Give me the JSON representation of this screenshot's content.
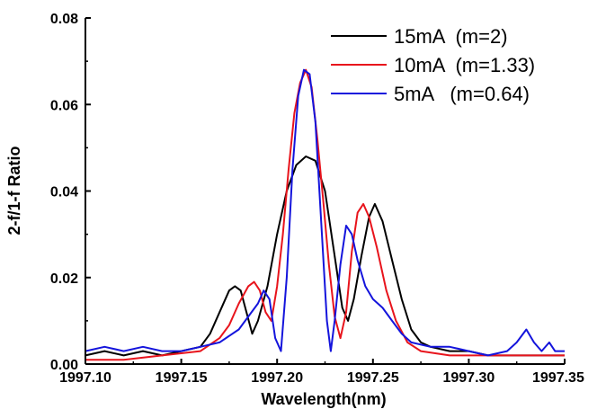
{
  "chart_data": {
    "type": "line",
    "xlabel": "Wavelength(nm)",
    "ylabel": "2-f/1-f Ratio",
    "xlim": [
      1997.1,
      1997.35
    ],
    "ylim": [
      0.0,
      0.08
    ],
    "xticks": [
      {
        "value": 1997.1,
        "label": "1997.10"
      },
      {
        "value": 1997.15,
        "label": "1997.15"
      },
      {
        "value": 1997.2,
        "label": "1997.20"
      },
      {
        "value": 1997.25,
        "label": "1997.25"
      },
      {
        "value": 1997.3,
        "label": "1997.30"
      },
      {
        "value": 1997.35,
        "label": "1997.35"
      }
    ],
    "yticks": [
      {
        "value": 0.0,
        "label": "0.00"
      },
      {
        "value": 0.02,
        "label": "0.02"
      },
      {
        "value": 0.04,
        "label": "0.04"
      },
      {
        "value": 0.06,
        "label": "0.06"
      },
      {
        "value": 0.08,
        "label": "0.08"
      }
    ],
    "grid": false,
    "legend_position": "top-right",
    "series": [
      {
        "name": "15mA  (m=2)",
        "color": "#000000",
        "points": [
          [
            1997.1,
            0.002
          ],
          [
            1997.11,
            0.003
          ],
          [
            1997.12,
            0.002
          ],
          [
            1997.13,
            0.003
          ],
          [
            1997.14,
            0.002
          ],
          [
            1997.15,
            0.003
          ],
          [
            1997.16,
            0.004
          ],
          [
            1997.165,
            0.007
          ],
          [
            1997.17,
            0.012
          ],
          [
            1997.175,
            0.017
          ],
          [
            1997.178,
            0.018
          ],
          [
            1997.181,
            0.017
          ],
          [
            1997.184,
            0.012
          ],
          [
            1997.187,
            0.007
          ],
          [
            1997.19,
            0.01
          ],
          [
            1997.195,
            0.018
          ],
          [
            1997.2,
            0.03
          ],
          [
            1997.205,
            0.04
          ],
          [
            1997.21,
            0.046
          ],
          [
            1997.215,
            0.048
          ],
          [
            1997.22,
            0.047
          ],
          [
            1997.225,
            0.04
          ],
          [
            1997.23,
            0.025
          ],
          [
            1997.234,
            0.013
          ],
          [
            1997.237,
            0.01
          ],
          [
            1997.24,
            0.015
          ],
          [
            1997.244,
            0.025
          ],
          [
            1997.248,
            0.034
          ],
          [
            1997.251,
            0.037
          ],
          [
            1997.255,
            0.033
          ],
          [
            1997.26,
            0.024
          ],
          [
            1997.265,
            0.015
          ],
          [
            1997.27,
            0.008
          ],
          [
            1997.275,
            0.005
          ],
          [
            1997.28,
            0.004
          ],
          [
            1997.29,
            0.003
          ],
          [
            1997.3,
            0.003
          ],
          [
            1997.31,
            0.002
          ],
          [
            1997.32,
            0.002
          ],
          [
            1997.33,
            0.002
          ],
          [
            1997.34,
            0.002
          ],
          [
            1997.35,
            0.002
          ]
        ]
      },
      {
        "name": "10mA  (m=1.33)",
        "color": "#e8141c",
        "points": [
          [
            1997.1,
            0.001
          ],
          [
            1997.12,
            0.001
          ],
          [
            1997.14,
            0.002
          ],
          [
            1997.16,
            0.003
          ],
          [
            1997.17,
            0.006
          ],
          [
            1997.175,
            0.009
          ],
          [
            1997.18,
            0.014
          ],
          [
            1997.185,
            0.018
          ],
          [
            1997.188,
            0.019
          ],
          [
            1997.191,
            0.017
          ],
          [
            1997.194,
            0.012
          ],
          [
            1997.197,
            0.01
          ],
          [
            1997.2,
            0.018
          ],
          [
            1997.203,
            0.03
          ],
          [
            1997.206,
            0.045
          ],
          [
            1997.209,
            0.058
          ],
          [
            1997.212,
            0.065
          ],
          [
            1997.215,
            0.068
          ],
          [
            1997.218,
            0.064
          ],
          [
            1997.221,
            0.052
          ],
          [
            1997.224,
            0.038
          ],
          [
            1997.227,
            0.023
          ],
          [
            1997.23,
            0.011
          ],
          [
            1997.233,
            0.006
          ],
          [
            1997.236,
            0.012
          ],
          [
            1997.239,
            0.026
          ],
          [
            1997.242,
            0.035
          ],
          [
            1997.245,
            0.037
          ],
          [
            1997.248,
            0.034
          ],
          [
            1997.252,
            0.027
          ],
          [
            1997.257,
            0.017
          ],
          [
            1997.262,
            0.01
          ],
          [
            1997.268,
            0.005
          ],
          [
            1997.275,
            0.003
          ],
          [
            1997.29,
            0.002
          ],
          [
            1997.31,
            0.002
          ],
          [
            1997.33,
            0.002
          ],
          [
            1997.35,
            0.002
          ]
        ]
      },
      {
        "name": "5mA   (m=0.64)",
        "color": "#1414dc",
        "points": [
          [
            1997.1,
            0.003
          ],
          [
            1997.11,
            0.004
          ],
          [
            1997.12,
            0.003
          ],
          [
            1997.13,
            0.004
          ],
          [
            1997.14,
            0.003
          ],
          [
            1997.15,
            0.003
          ],
          [
            1997.16,
            0.004
          ],
          [
            1997.17,
            0.005
          ],
          [
            1997.18,
            0.008
          ],
          [
            1997.185,
            0.011
          ],
          [
            1997.19,
            0.014
          ],
          [
            1997.193,
            0.017
          ],
          [
            1997.196,
            0.015
          ],
          [
            1997.199,
            0.006
          ],
          [
            1997.202,
            0.003
          ],
          [
            1997.205,
            0.02
          ],
          [
            1997.208,
            0.045
          ],
          [
            1997.211,
            0.062
          ],
          [
            1997.214,
            0.068
          ],
          [
            1997.217,
            0.067
          ],
          [
            1997.22,
            0.056
          ],
          [
            1997.223,
            0.033
          ],
          [
            1997.226,
            0.01
          ],
          [
            1997.228,
            0.003
          ],
          [
            1997.23,
            0.01
          ],
          [
            1997.233,
            0.023
          ],
          [
            1997.236,
            0.032
          ],
          [
            1997.239,
            0.03
          ],
          [
            1997.242,
            0.024
          ],
          [
            1997.246,
            0.018
          ],
          [
            1997.25,
            0.015
          ],
          [
            1997.255,
            0.013
          ],
          [
            1997.26,
            0.01
          ],
          [
            1997.265,
            0.007
          ],
          [
            1997.27,
            0.005
          ],
          [
            1997.28,
            0.004
          ],
          [
            1997.29,
            0.004
          ],
          [
            1997.3,
            0.003
          ],
          [
            1997.31,
            0.002
          ],
          [
            1997.32,
            0.003
          ],
          [
            1997.325,
            0.005
          ],
          [
            1997.33,
            0.008
          ],
          [
            1997.334,
            0.005
          ],
          [
            1997.338,
            0.003
          ],
          [
            1997.342,
            0.005
          ],
          [
            1997.345,
            0.003
          ],
          [
            1997.35,
            0.003
          ]
        ]
      }
    ]
  }
}
